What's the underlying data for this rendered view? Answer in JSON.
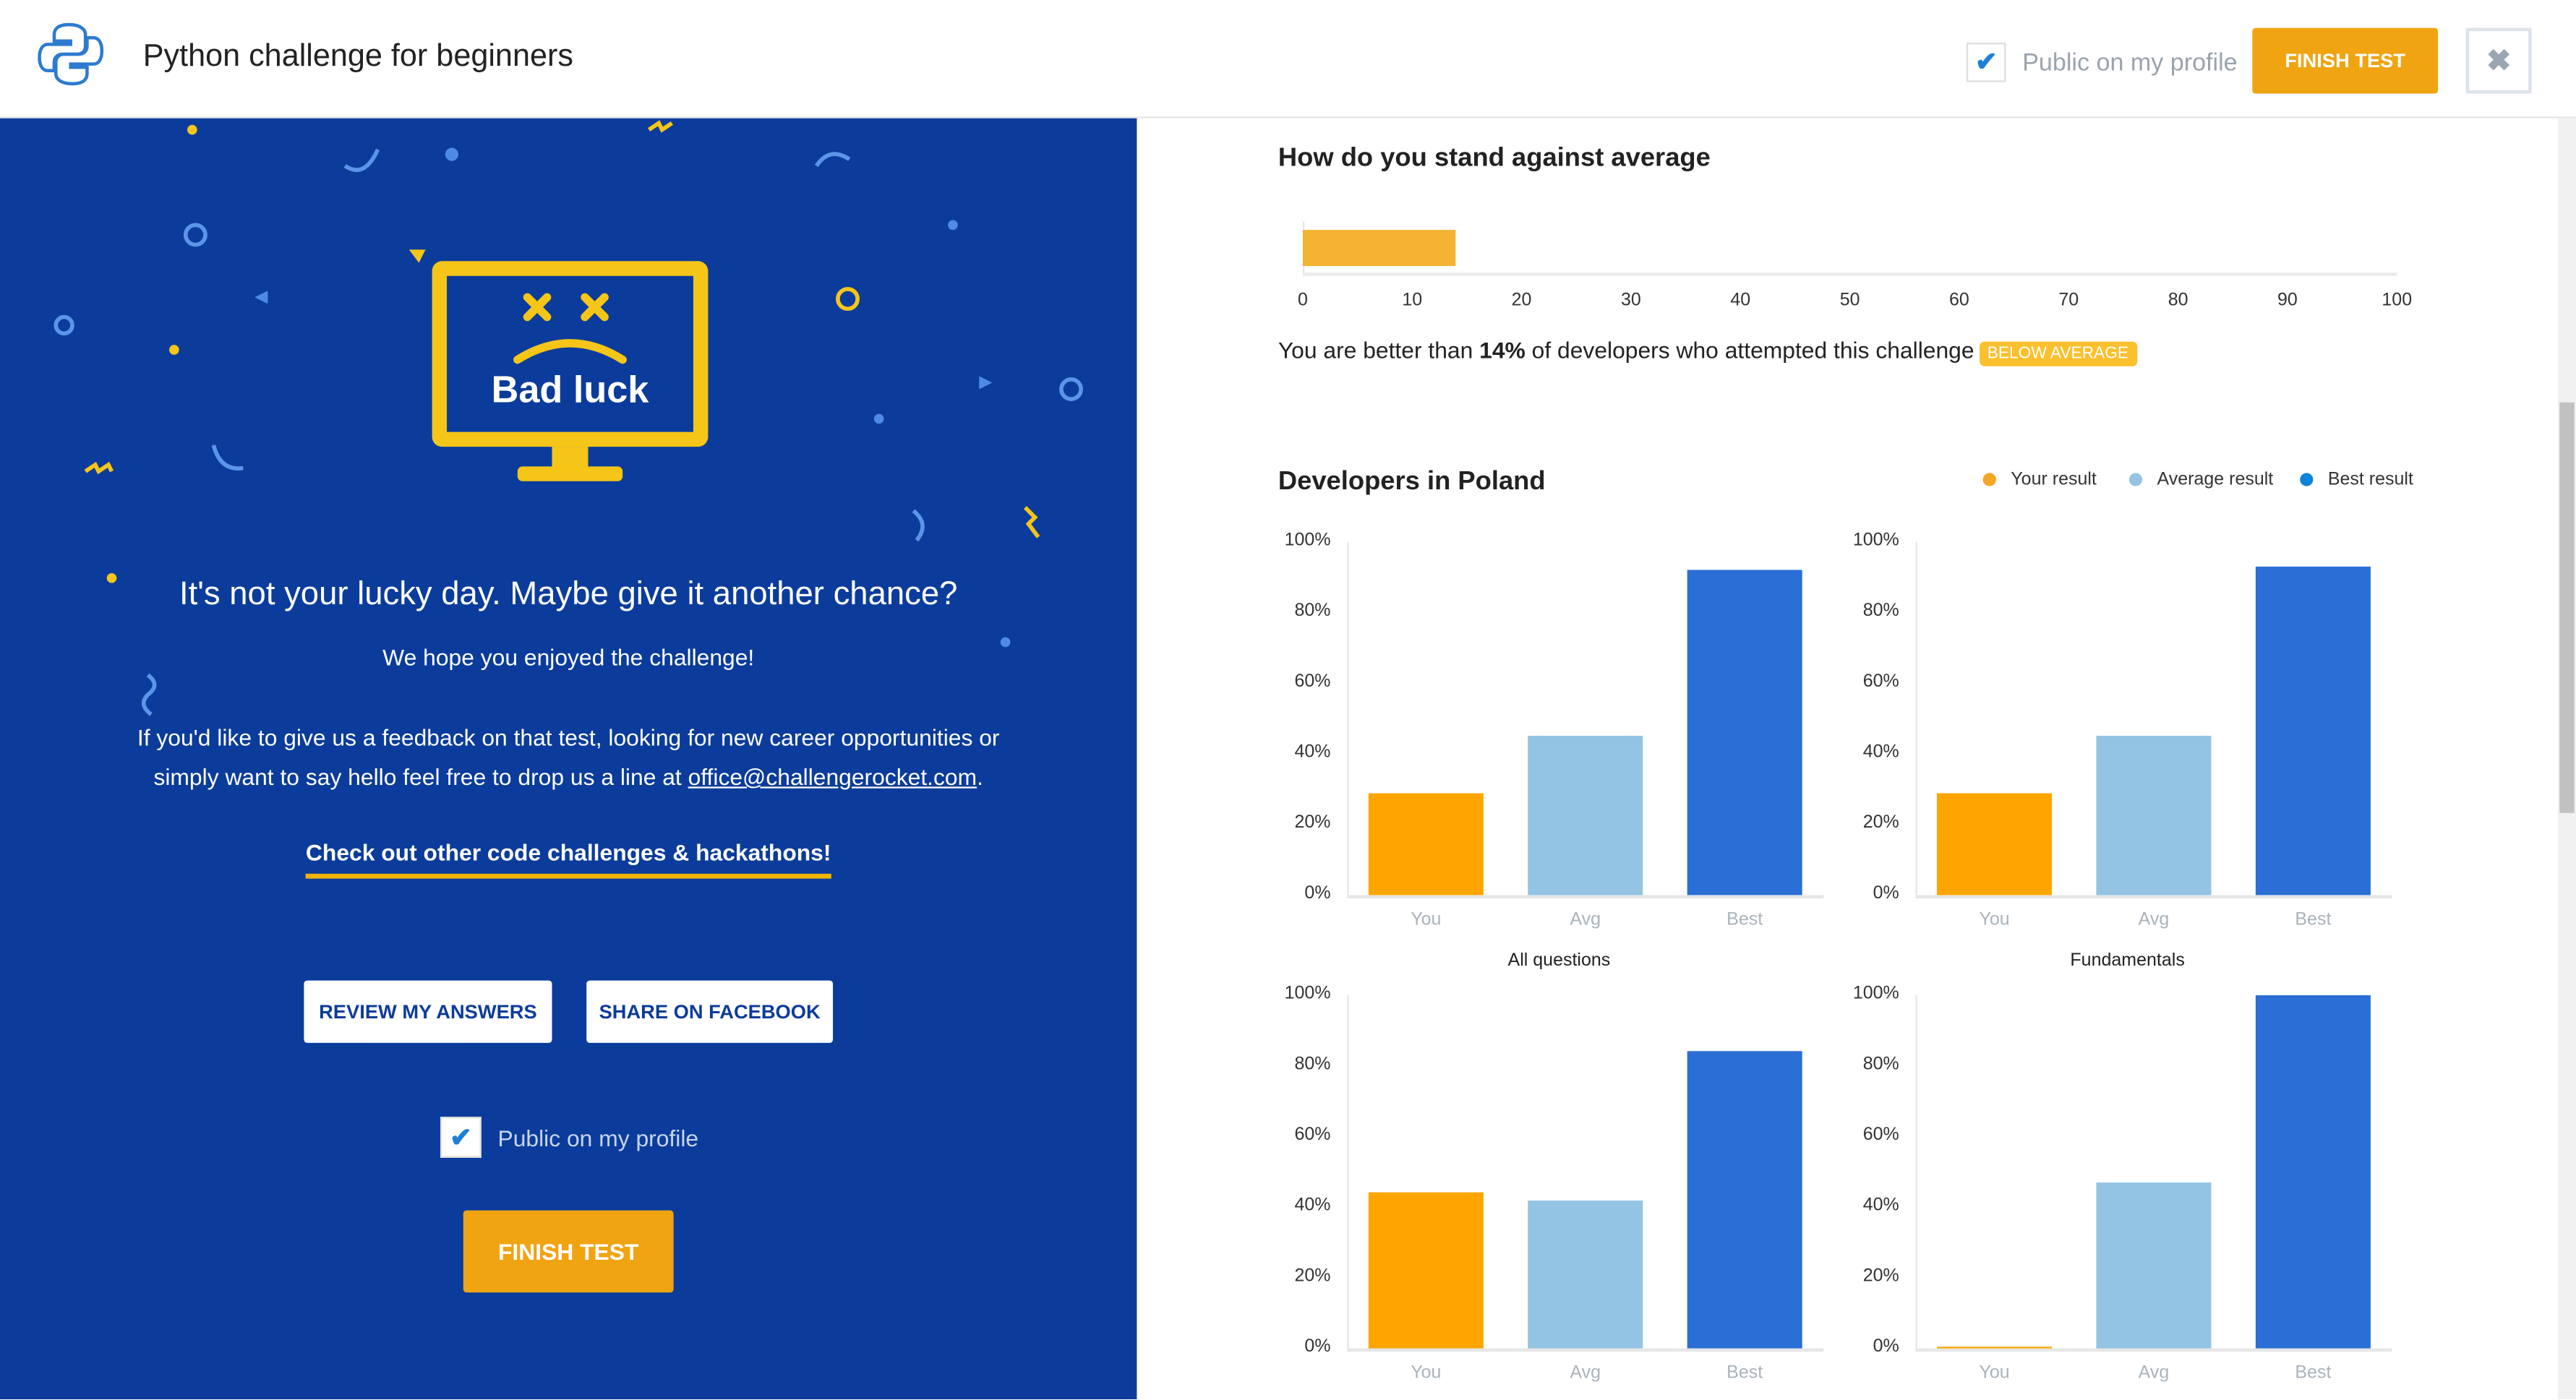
{
  "header": {
    "title": "Python challenge for beginners",
    "public_label": "Public on my profile",
    "public_checked": true,
    "finish_label": "FINISH TEST",
    "close_icon": "close-icon"
  },
  "left": {
    "illustration_text": "Bad luck",
    "headline": "It's not your lucky day. Maybe give it another chance?",
    "enjoy": "We hope you enjoyed the challenge!",
    "feedback_pre": "If you'd like to give us a feedback on that test, looking for new career opportunities or simply want to say hello feel free to drop us a line at ",
    "feedback_email": "office@challengerocket.com",
    "feedback_post": ".",
    "check_link": "Check out other code challenges & hackathons!",
    "review_label": "REVIEW MY ANSWERS",
    "share_label": "SHARE ON FACEBOOK",
    "public_label": "Public on my profile",
    "finish_label": "FINISH TEST"
  },
  "colors": {
    "panel": "#0b3c9b",
    "you": "#ffa500",
    "avg": "#94c4e3",
    "best": "#2a6ed6",
    "accent": "#f0a412"
  },
  "chart_data": [
    {
      "type": "bar",
      "orientation": "horizontal",
      "title": "How do you stand against average",
      "values": [
        14
      ],
      "xlim": [
        0,
        100
      ],
      "ticks": [
        "0",
        "10",
        "20",
        "30",
        "40",
        "50",
        "60",
        "70",
        "80",
        "90",
        "100"
      ],
      "summary_pre": "You are better than ",
      "summary_value": "14%",
      "summary_post": " of developers who attempted this challenge",
      "badge": "BELOW AVERAGE"
    },
    {
      "section_title": "Developers in Poland",
      "legend": [
        "Your result",
        "Average result",
        "Best result"
      ],
      "legend_placement": "top-right",
      "charts": [
        {
          "type": "bar",
          "title": "All questions",
          "categories": [
            "You",
            "Avg",
            "Best"
          ],
          "values": [
            29,
            45,
            92
          ],
          "ylim": [
            0,
            100
          ],
          "yticks": [
            "0%",
            "20%",
            "40%",
            "60%",
            "80%",
            "100%"
          ]
        },
        {
          "type": "bar",
          "title": "Fundamentals",
          "categories": [
            "You",
            "Avg",
            "Best"
          ],
          "values": [
            29,
            45,
            93
          ],
          "ylim": [
            0,
            100
          ],
          "yticks": [
            "0%",
            "20%",
            "40%",
            "60%",
            "80%",
            "100%"
          ]
        },
        {
          "type": "bar",
          "title": "",
          "categories": [
            "You",
            "Avg",
            "Best"
          ],
          "values": [
            44,
            42,
            84
          ],
          "ylim": [
            0,
            100
          ],
          "yticks": [
            "0%",
            "20%",
            "40%",
            "60%",
            "80%",
            "100%"
          ]
        },
        {
          "type": "bar",
          "title": "",
          "categories": [
            "You",
            "Avg",
            "Best"
          ],
          "values": [
            0,
            47,
            100
          ],
          "ylim": [
            0,
            100
          ],
          "yticks": [
            "0%",
            "20%",
            "40%",
            "60%",
            "80%",
            "100%"
          ]
        }
      ]
    }
  ]
}
